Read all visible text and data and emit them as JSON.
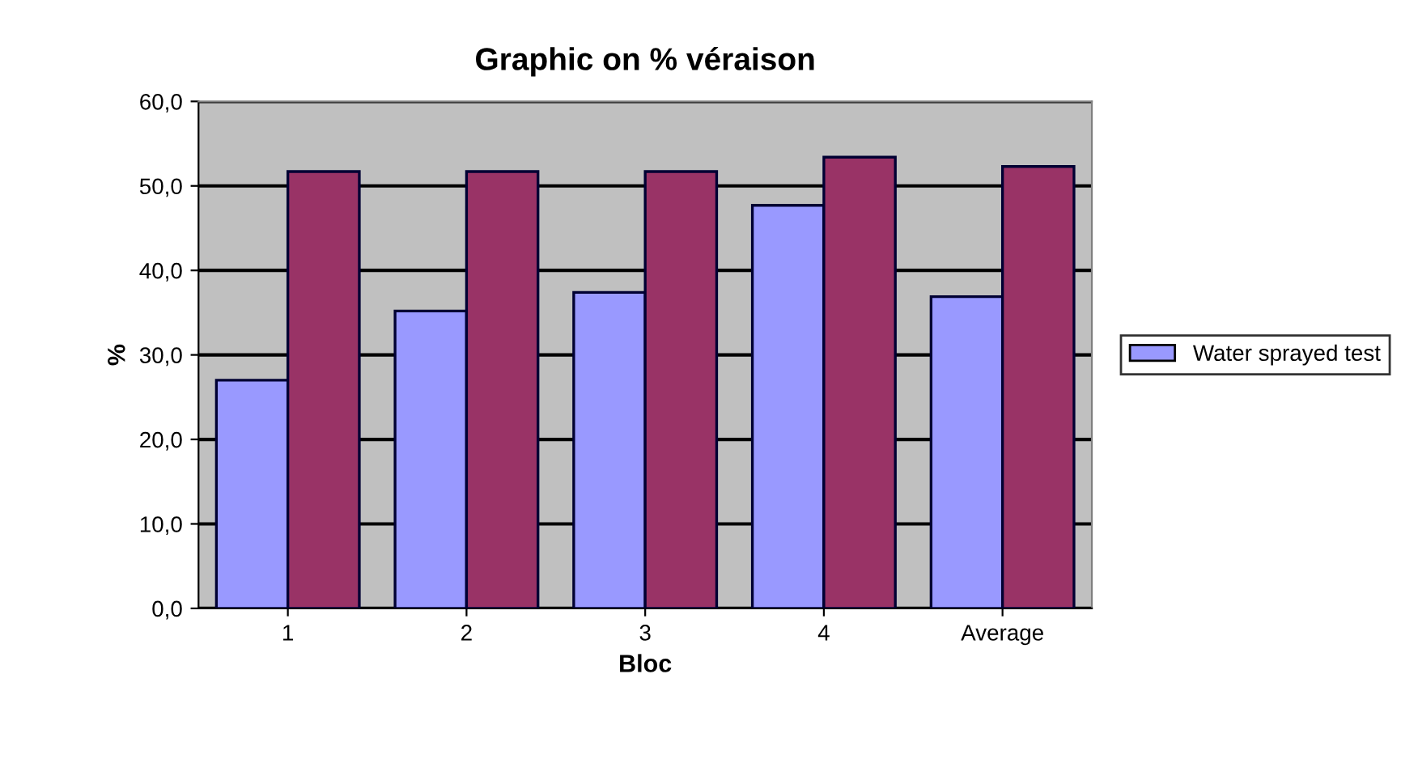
{
  "chart_data": {
    "type": "bar",
    "title": "Graphic on % véraison",
    "xlabel": "Bloc",
    "ylabel": "%",
    "categories": [
      "1",
      "2",
      "3",
      "4",
      "Average"
    ],
    "series": [
      {
        "name": "Water sprayed test",
        "color": "#9999ff",
        "values": [
          27.0,
          35.2,
          37.4,
          47.7,
          36.9
        ]
      },
      {
        "color": "#993366",
        "values": [
          51.7,
          51.7,
          51.7,
          53.4,
          52.3
        ]
      }
    ],
    "ylim": [
      0,
      60
    ],
    "yticks": [
      {
        "value": 0,
        "label": "0,0"
      },
      {
        "value": 10,
        "label": "10,0"
      },
      {
        "value": 20,
        "label": "20,0"
      },
      {
        "value": 30,
        "label": "30,0"
      },
      {
        "value": 40,
        "label": "40,0"
      },
      {
        "value": 50,
        "label": "50,0"
      },
      {
        "value": 60,
        "label": "60,0"
      }
    ],
    "grid": "y",
    "legend": "right"
  }
}
